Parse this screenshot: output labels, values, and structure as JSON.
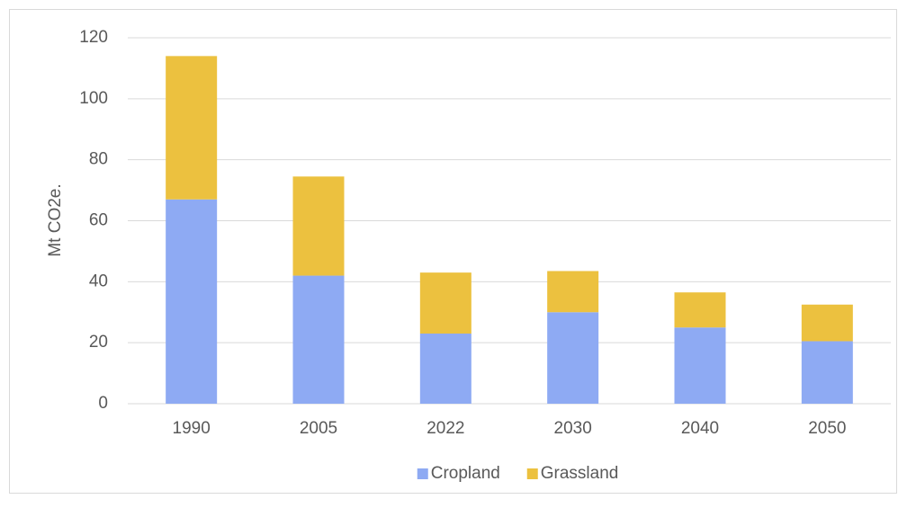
{
  "chart_data": {
    "type": "stacked-bar",
    "y_label": "Mt CO2e.",
    "categories": [
      "1990",
      "2005",
      "2022",
      "2030",
      "2040",
      "2050"
    ],
    "series": [
      {
        "name": "Cropland",
        "color": "#8eaaf3",
        "values": [
          67,
          42,
          23,
          30,
          25,
          20.5
        ]
      },
      {
        "name": "Grassland",
        "color": "#ecc13f",
        "values": [
          47,
          32.5,
          20,
          13.5,
          11.5,
          12
        ]
      }
    ],
    "ylim": [
      0,
      120
    ],
    "yticks": [
      0,
      20,
      40,
      60,
      80,
      100,
      120
    ],
    "grid": true,
    "legend": "bottom"
  }
}
